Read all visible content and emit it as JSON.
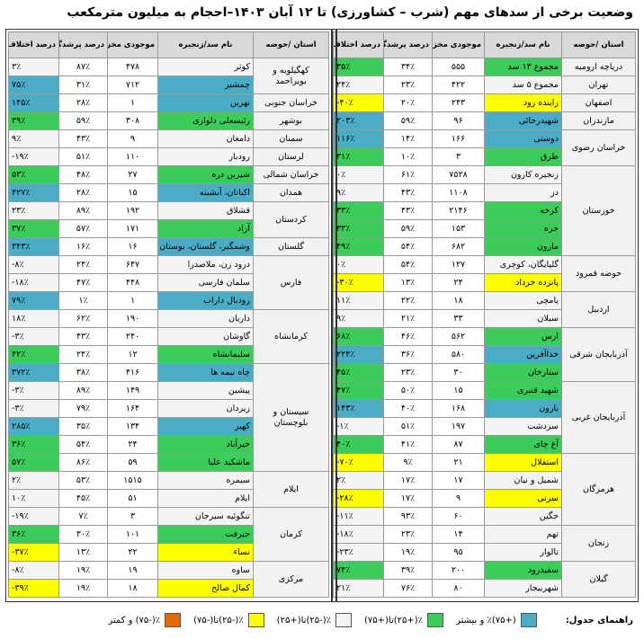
{
  "title": "وضعیت برخی از سدهای مهم (شرب – کشاورزی) تا ۱۲ آبان ۱۴۰۳–احجام به میلیون مترمکعب",
  "header": [
    "استان /حوضه",
    "نام سد/زنجیره",
    "موجودی مخزن",
    "درصد پرشدگی",
    "درصد اختلاف با سال قبل"
  ],
  "legend": {
    "title": "راهنمای جدول:",
    "items": [
      {
        "label": "(+۷۵)٪ و بیشتر",
        "color": "#4bacc6"
      },
      {
        "label": "٪(+۲۵)تا(+۷۵)",
        "color": "#3ccc5a"
      },
      {
        "label": "٪(-۲۵)تا(+۲۵)",
        "color": "#f4f4f4"
      },
      {
        "label": "٪(-۲۵)تا(-۷۵)",
        "color": "#ffff00"
      },
      {
        "label": "٪(-۷۵) و کمتر",
        "color": "#e46c0a"
      }
    ]
  },
  "tables": [
    {
      "groups": [
        {
          "province": "دریاچه ارومیه",
          "rows": [
            [
              "مجموع ۱۳ سد",
              "۵۵۵",
              "۳۴٪",
              "۳۵٪",
              1
            ]
          ]
        },
        {
          "province": "تهران",
          "rows": [
            [
              "مجموع ۵ سد",
              "۴۲۲",
              "۲۳٪",
              "۲۴٪",
              2
            ]
          ]
        },
        {
          "province": "اصفهان",
          "rows": [
            [
              "زاینده رود",
              "۲۴۳",
              "۲۰٪",
              "-۴۰٪",
              3
            ]
          ]
        },
        {
          "province": "مازندران",
          "rows": [
            [
              "شهیدرجائی",
              "۹۶",
              "۵۹٪",
              "۲۰۳٪",
              0
            ]
          ]
        },
        {
          "province": "خراسان رضوی",
          "rows": [
            [
              "دوستی",
              "۱۶۶",
              "۱۴٪",
              "۱۱۶٪",
              0
            ],
            [
              "طرق",
              "۳",
              "۱۰٪",
              "۳۱٪",
              1
            ]
          ]
        },
        {
          "province": "خوزستان",
          "rows": [
            [
              "زنجیره کارون",
              "۷۵۲۸",
              "۶۱٪",
              "۰٪",
              2
            ],
            [
              "دز",
              "۱۱۰۸",
              "۴۳٪",
              "۹٪",
              2
            ],
            [
              "کرخه",
              "۲۱۴۶",
              "۴۳٪",
              "۳۳٪",
              1
            ],
            [
              "جره",
              "۱۵۳",
              "۵۹٪",
              "۳۳٪",
              1
            ],
            [
              "مارون",
              "۶۸۲",
              "۵۴٪",
              "۴۹٪",
              1
            ]
          ]
        },
        {
          "province": "حوضه قمرود",
          "rows": [
            [
              "گلپایگان، کوچری",
              "۱۲۷",
              "۵۴٪",
              "۰٪",
              2
            ],
            [
              "پانزده خرداد",
              "۲۴",
              "۱۳٪",
              "-۳۰٪",
              3
            ]
          ]
        },
        {
          "province": "اردبیل",
          "rows": [
            [
              "یامچی",
              "۱۸",
              "۲۲٪",
              "۱۱٪",
              2
            ],
            [
              "سبلان",
              "۳۳",
              "۲۱٪",
              "۹٪",
              2
            ]
          ]
        },
        {
          "province": "آذربایجان شرقی",
          "rows": [
            [
              "ارس",
              "۵۶۲",
              "۴۶٪",
              "۶۸٪",
              1
            ],
            [
              "خداآفرین",
              "۵۸۰",
              "۳۶٪",
              "۲۲۴٪",
              0
            ],
            [
              "ستارخان",
              "۳۰",
              "۲۳٪",
              "۴۵٪",
              1
            ]
          ]
        },
        {
          "province": "آذربایجان غربی",
          "rows": [
            [
              "شهید قنبری",
              "۱۵",
              "۵۰٪",
              "۴۷٪",
              1
            ],
            [
              "بارون",
              "۱۶۸",
              "۴۰٪",
              "۱۴۳٪",
              0
            ],
            [
              "سردشت",
              "۱۹۷",
              "۵۱٪",
              "-۱٪",
              2
            ],
            [
              "آغ چای",
              "۸۷",
              "۴۱٪",
              "۴۰٪",
              1
            ]
          ]
        },
        {
          "province": "هرمزگان",
          "rows": [
            [
              "استقلال",
              "۲۱",
              "۹٪",
              "-۷۰٪",
              3
            ],
            [
              "شمیل و نیان",
              "۱۷",
              "۱۷٪",
              "۲٪",
              2
            ],
            [
              "سرنی",
              "۹",
              "۱۷٪",
              "-۲۸٪",
              3
            ],
            [
              "جگین",
              "۶۰",
              "۹۳٪",
              "-۱۱٪",
              2
            ]
          ]
        },
        {
          "province": "زنجان",
          "rows": [
            [
              "تهم",
              "۱۴",
              "۲۳٪",
              "-۱۸٪",
              2
            ],
            [
              "تالوار",
              "۹۵",
              "۱۹٪",
              "-۲۳٪",
              2
            ]
          ]
        },
        {
          "province": "گیلان",
          "rows": [
            [
              "سفیدرود",
              "۲۰۰",
              "۳۹٪",
              "۷۴٪",
              1
            ],
            [
              "شهربیجار",
              "۸۰",
              "۷۶٪",
              "۲۱٪",
              2
            ]
          ]
        }
      ]
    },
    {
      "groups": [
        {
          "province": "کهگیلویه و بویراحمد",
          "rows": [
            [
              "کوثر",
              "۴۷۸",
              "۸۷٪",
              "۳٪",
              2
            ],
            [
              "چمشیر",
              "۷۱۲",
              "۳۱٪",
              "۷۵٪",
              0
            ]
          ]
        },
        {
          "province": "خراسان جنوبی",
          "rows": [
            [
              "نهرین",
              "۱",
              "۲۸٪",
              "۱۴۵٪",
              0
            ]
          ]
        },
        {
          "province": "بوشهر",
          "rows": [
            [
              "رئیسعلی دلواری",
              "۳۰۸",
              "۵۹٪",
              "۳۹٪",
              1
            ]
          ]
        },
        {
          "province": "سمنان",
          "rows": [
            [
              "دامغان",
              "۹",
              "۴۳٪",
              "۹٪",
              2
            ]
          ]
        },
        {
          "province": "لرستان",
          "rows": [
            [
              "رودبار",
              "۱۱۰",
              "۵۱٪",
              "-۱۹٪",
              2
            ]
          ]
        },
        {
          "province": "خراسان شمالی",
          "rows": [
            [
              "شیرین دره",
              "۲۷",
              "۴۸٪",
              "۵۳٪",
              1
            ]
          ]
        },
        {
          "province": "همدان",
          "rows": [
            [
              "اکباتان، آبشینه",
              "۱۵",
              "۲۸٪",
              "۴۲۷٪",
              0
            ]
          ]
        },
        {
          "province": "کردستان",
          "rows": [
            [
              "قشلاق",
              "۱۹۲",
              "۸۹٪",
              "۲۳٪",
              2
            ],
            [
              "آزاد",
              "۱۷۱",
              "۵۷٪",
              "۳۷٪",
              1
            ]
          ]
        },
        {
          "province": "گلستان",
          "rows": [
            [
              "وشمگیر، گلستان، بوستان",
              "۱۶",
              "۱۶٪",
              "۳۴۳٪",
              0
            ]
          ]
        },
        {
          "province": "فارس",
          "rows": [
            [
              "درود زن، ملاصدرا",
              "۶۴۷",
              "۲۴٪",
              "-۸٪",
              2
            ],
            [
              "سلمان فارسی",
              "۴۴۸",
              "۴۷٪",
              "-۱۸٪",
              2
            ],
            [
              "رودبال داراب",
              "۱",
              "۱٪",
              "۷۹٪",
              0
            ]
          ]
        },
        {
          "province": "کرمانشاه",
          "rows": [
            [
              "داریان",
              "۱۹۰",
              "۶۲٪",
              "۱۸٪",
              2
            ],
            [
              "گاوشان",
              "۲۴۰",
              "۴۳٪",
              "-۳٪",
              2
            ],
            [
              "سلیمانشاه",
              "۱۲",
              "۲۴٪",
              "۴۲٪",
              1
            ]
          ]
        },
        {
          "province": "سیستان و بلوچستان",
          "rows": [
            [
              "چاه نیمه ها",
              "۴۱۶",
              "۳۸٪",
              "۳۷۲٪",
              0
            ],
            [
              "پیشین",
              "۱۴۹",
              "۸۹٪",
              "-۳٪",
              2
            ],
            [
              "زیردان",
              "۱۶۴",
              "۷۹٪",
              "-۳٪",
              2
            ],
            [
              "کهیر",
              "۱۳۴",
              "۳۵٪",
              "۲۸۵٪",
              0
            ],
            [
              "خیرآباد",
              "۲۴",
              "۵۴٪",
              "۳۶٪",
              1
            ],
            [
              "ماشکید علیا",
              "۵۹",
              "۸۶٪",
              "۵۷٪",
              1
            ]
          ]
        },
        {
          "province": "ایلام",
          "rows": [
            [
              "سیمره",
              "۱۵۱۵",
              "۵۳٪",
              "۲٪",
              2
            ],
            [
              "ایلام",
              "۵۱",
              "۴۵٪",
              "۱۰٪",
              2
            ]
          ]
        },
        {
          "province": "کرمان",
          "rows": [
            [
              "تنگوئیه سیرجان",
              "۳",
              "۷٪",
              "-۱۹٪",
              2
            ],
            [
              "جیرفت",
              "۱۰۱",
              "۳۰٪",
              "۳۶٪",
              1
            ],
            [
              "نساء",
              "۲۲",
              "۱۳٪",
              "-۳۷٪",
              3
            ]
          ]
        },
        {
          "province": "مرکزی",
          "rows": [
            [
              "ساوه",
              "۱۹",
              "۱۹٪",
              "-۸٪",
              2
            ],
            [
              "کمال صالح",
              "۱۸",
              "۱۹٪",
              "-۳۹٪",
              3
            ]
          ]
        }
      ]
    }
  ]
}
